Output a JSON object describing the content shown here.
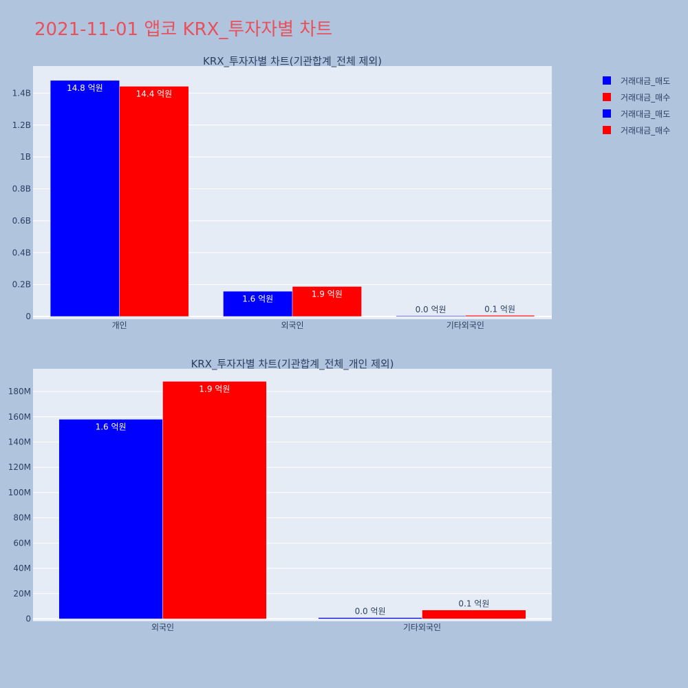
{
  "page": {
    "title": "2021-11-01 앱코 KRX_투자자별 차트",
    "title_color": "#e8505b",
    "background": "#b0c4de",
    "plot_background": "#e5ecf6"
  },
  "legend": {
    "items": [
      {
        "label": "거래대금_매도",
        "color": "#0000ff"
      },
      {
        "label": "거래대금_매수",
        "color": "#ff0000"
      },
      {
        "label": "거래대금_매도",
        "color": "#0000ff"
      },
      {
        "label": "거래대금_매수",
        "color": "#ff0000"
      }
    ]
  },
  "chart_data": [
    {
      "type": "bar",
      "title": "KRX_투자자별 차트(기관합계_전체 제외)",
      "categories": [
        "개인",
        "외국인",
        "기타외국인"
      ],
      "series": [
        {
          "name": "거래대금_매도",
          "color": "#0000ff",
          "values": [
            1480000000,
            158000000,
            1000000
          ],
          "labels": [
            "14.8 억원",
            "1.6 억원",
            "0.0 억원"
          ]
        },
        {
          "name": "거래대금_매수",
          "color": "#ff0000",
          "values": [
            1443000000,
            188000000,
            7000000
          ],
          "labels": [
            "14.4 억원",
            "1.9 억원",
            "0.1 억원"
          ]
        }
      ],
      "ylim": [
        0,
        1570000000
      ],
      "yticks": [
        0,
        200000000,
        400000000,
        600000000,
        800000000,
        1000000000,
        1200000000,
        1400000000
      ],
      "ytick_labels": [
        "0",
        "0.2B",
        "0.4B",
        "0.6B",
        "0.8B",
        "1B",
        "1.2B",
        "1.4B"
      ],
      "grid": true
    },
    {
      "type": "bar",
      "title": "KRX_투자자별 차트(기관합계_전체_개인 제외)",
      "categories": [
        "외국인",
        "기타외국인"
      ],
      "series": [
        {
          "name": "거래대금_매도",
          "color": "#0000ff",
          "values": [
            158000000,
            1000000
          ],
          "labels": [
            "1.6 억원",
            "0.0 억원"
          ]
        },
        {
          "name": "거래대금_매수",
          "color": "#ff0000",
          "values": [
            188000000,
            7000000
          ],
          "labels": [
            "1.9 억원",
            "0.1 억원"
          ]
        }
      ],
      "ylim": [
        0,
        198000000
      ],
      "yticks": [
        0,
        20000000,
        40000000,
        60000000,
        80000000,
        100000000,
        120000000,
        140000000,
        160000000,
        180000000
      ],
      "ytick_labels": [
        "0",
        "20M",
        "40M",
        "60M",
        "80M",
        "100M",
        "120M",
        "140M",
        "160M",
        "180M"
      ],
      "grid": true
    }
  ]
}
